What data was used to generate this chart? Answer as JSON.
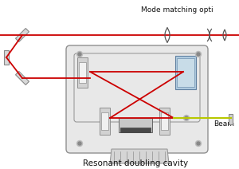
{
  "title_top": "Mode matching opti",
  "title_bottom": "Resonant doubling cavity",
  "beam_label": "Beam",
  "bg_color": "#ffffff",
  "cavity_edge": "#909090",
  "cavity_fill": "#e8e8e8",
  "red_beam": "#cc0000",
  "yellow_beam": "#b8c800",
  "figsize": [
    3.0,
    2.12
  ],
  "dpi": 100,
  "lw_beam": 1.3,
  "lw_cavity": 1.0
}
